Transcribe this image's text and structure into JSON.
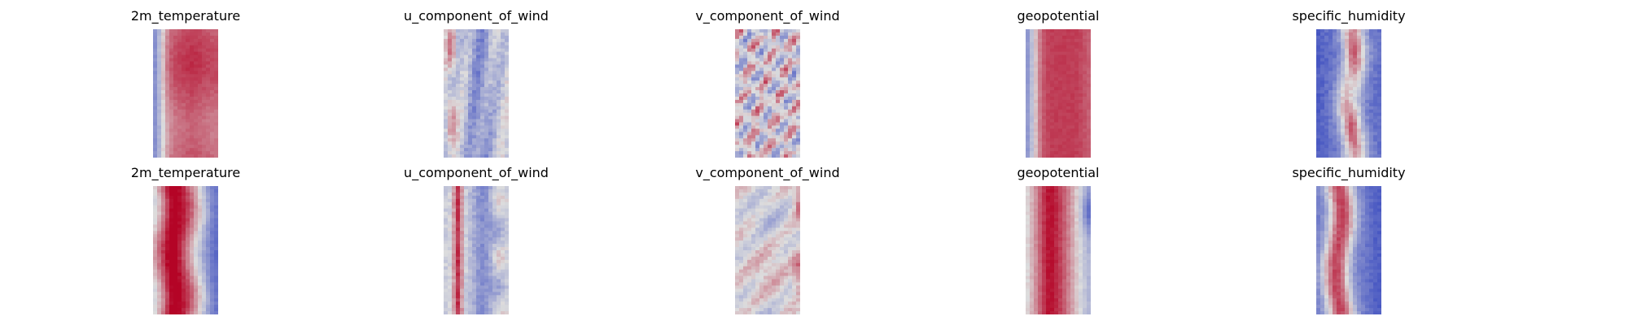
{
  "chart_data": {
    "type": "heatmap",
    "colormap": "coolwarm",
    "colormap_colors": [
      "#3b4cc0",
      "#dddddd",
      "#b40426"
    ],
    "axes": "off",
    "rows": [
      {
        "panels": [
          {
            "title": "2m_temperature",
            "pattern": "warm_band",
            "seed": 11
          },
          {
            "title": "u_component_of_wind",
            "pattern": "wind_u",
            "seed": 12
          },
          {
            "title": "v_component_of_wind",
            "pattern": "wind_v",
            "seed": 13
          },
          {
            "title": "geopotential",
            "pattern": "geopotential",
            "seed": 14
          },
          {
            "title": "specific_humidity",
            "pattern": "humidity",
            "seed": 15
          }
        ]
      },
      {
        "panels": [
          {
            "title": "2m_temperature",
            "pattern": "warm_band_2",
            "seed": 21
          },
          {
            "title": "u_component_of_wind",
            "pattern": "wind_u_2",
            "seed": 22
          },
          {
            "title": "v_component_of_wind",
            "pattern": "wind_v_2",
            "seed": 23
          },
          {
            "title": "geopotential",
            "pattern": "geopotential_2",
            "seed": 24
          },
          {
            "title": "specific_humidity",
            "pattern": "humidity_2",
            "seed": 25
          }
        ]
      }
    ]
  }
}
